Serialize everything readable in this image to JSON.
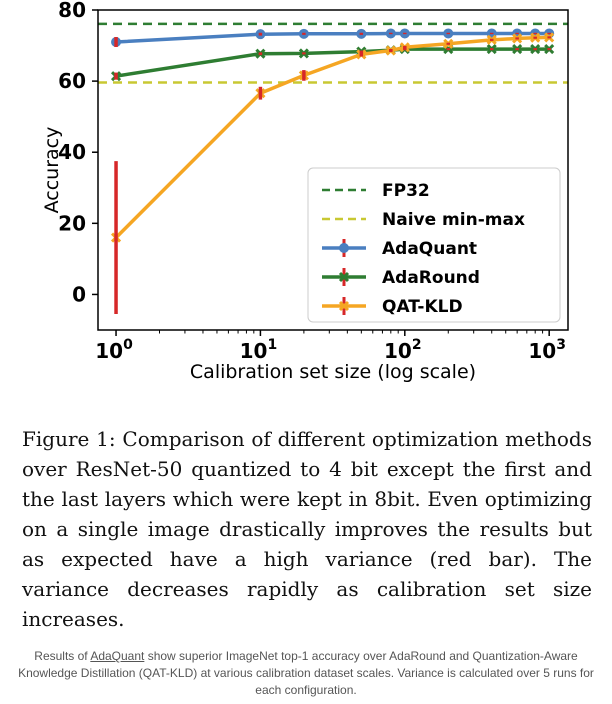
{
  "chart_data": {
    "type": "line",
    "xlabel": "Calibration set size (log scale)",
    "ylabel": "Accuracy",
    "x_scale": "log",
    "xlim": [
      0.75,
      1350
    ],
    "ylim": [
      -10,
      80
    ],
    "x_ticks": [
      {
        "base": "10",
        "exp": "0",
        "value": 1
      },
      {
        "base": "10",
        "exp": "1",
        "value": 10
      },
      {
        "base": "10",
        "exp": "2",
        "value": 100
      },
      {
        "base": "10",
        "exp": "3",
        "value": 1000
      }
    ],
    "y_ticks": [
      0,
      20,
      40,
      60,
      80
    ],
    "grid": false,
    "legend_position": "lower-right",
    "reference_lines": [
      {
        "name": "FP32",
        "y": 76.1,
        "color": "#2e7d32",
        "style": "dashed"
      },
      {
        "name": "Naive min-max",
        "y": 59.6,
        "color": "#c8c832",
        "style": "dashed"
      }
    ],
    "series": [
      {
        "name": "AdaQuant",
        "color": "#4a7fc0",
        "marker": "circle",
        "x": [
          1,
          10,
          20,
          50,
          80,
          100,
          200,
          400,
          600,
          800,
          1000
        ],
        "y": [
          71.0,
          73.2,
          73.3,
          73.3,
          73.4,
          73.4,
          73.4,
          73.4,
          73.4,
          73.4,
          73.4
        ],
        "err": [
          1.4,
          0.4,
          0.3,
          0.3,
          0.2,
          0.2,
          0.2,
          0.2,
          0.2,
          0.2,
          0.2
        ]
      },
      {
        "name": "AdaRound",
        "color": "#2e7d32",
        "marker": "x",
        "x": [
          1,
          10,
          20,
          50,
          80,
          100,
          200,
          400,
          600,
          800,
          1000
        ],
        "y": [
          61.4,
          67.7,
          67.8,
          68.3,
          68.7,
          69.0,
          69.0,
          69.0,
          69.0,
          69.0,
          69.0
        ],
        "err": [
          1.0,
          0.4,
          0.3,
          0.3,
          0.3,
          0.3,
          0.3,
          0.3,
          0.3,
          0.3,
          0.3
        ]
      },
      {
        "name": "QAT-KLD",
        "color": "#f5a623",
        "marker": "x",
        "x": [
          1,
          10,
          20,
          50,
          80,
          100,
          200,
          400,
          600,
          800,
          1000
        ],
        "y": [
          16.0,
          56.6,
          61.6,
          67.5,
          68.6,
          69.5,
          70.5,
          71.6,
          72.0,
          72.2,
          72.3
        ],
        "err": [
          21.5,
          1.8,
          1.5,
          0.6,
          0.4,
          0.4,
          0.3,
          0.3,
          0.3,
          0.3,
          0.3
        ]
      }
    ],
    "error_bar_color": "#d62728"
  },
  "caption": "Figure 1: Comparison of different optimization methods over ResNet-50 quantized to 4 bit except the first and the last layers which were kept in 8bit. Even optimizing on a single image drastically improves the results but as expected have a high variance (red bar). The variance decreases rapidly as calibration set size increases.",
  "note": {
    "prefix": "Results of ",
    "link": "AdaQuant",
    "suffix": " show superior ImageNet top-1 accuracy over AdaRound and Quantization-Aware Knowledge Distillation (QAT-KLD) at various calibration dataset scales. Variance is calculated over 5 runs for each configuration."
  }
}
